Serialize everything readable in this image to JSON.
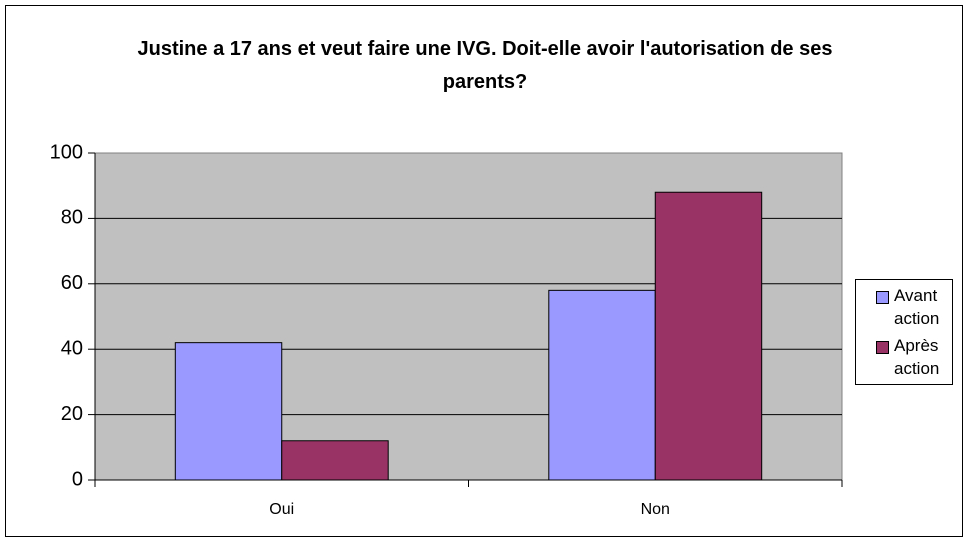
{
  "chart_data": {
    "type": "bar",
    "title": "Justine a 17 ans et veut faire une IVG. Doit-elle avoir l'autorisation de ses parents?",
    "categories": [
      "Oui",
      "Non"
    ],
    "series": [
      {
        "name": "Avant action",
        "color": "#9999ff",
        "values": [
          42,
          58
        ]
      },
      {
        "name": "Après action",
        "color": "#993366",
        "values": [
          12,
          88
        ]
      }
    ],
    "ylim": [
      0,
      100
    ],
    "yticks": [
      0,
      20,
      40,
      60,
      80,
      100
    ],
    "grid": true,
    "legend": "right"
  }
}
